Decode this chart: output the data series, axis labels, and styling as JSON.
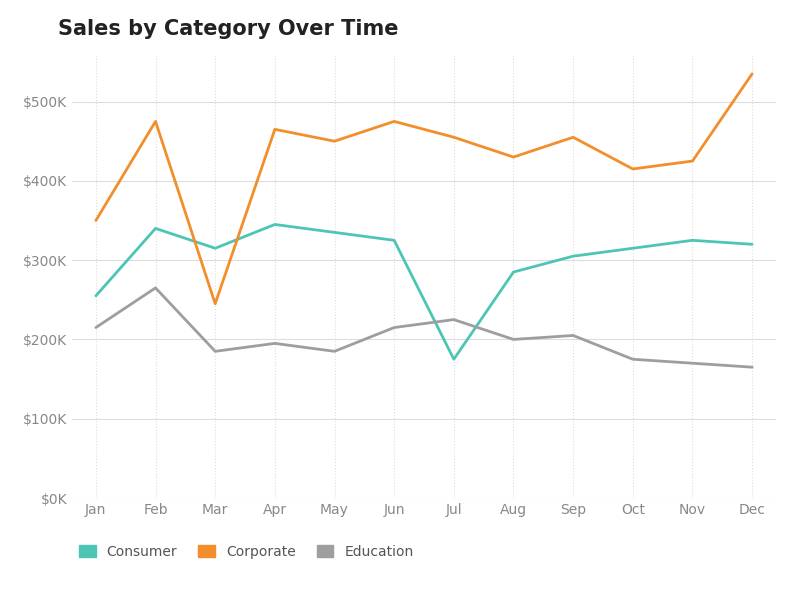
{
  "title": "Sales by Category Over Time",
  "months": [
    "Jan",
    "Feb",
    "Mar",
    "Apr",
    "May",
    "Jun",
    "Jul",
    "Aug",
    "Sep",
    "Oct",
    "Nov",
    "Dec"
  ],
  "series": {
    "Consumer": {
      "color": "#4dc5b5",
      "values": [
        255000,
        340000,
        315000,
        345000,
        335000,
        325000,
        175000,
        285000,
        305000,
        315000,
        325000,
        320000
      ]
    },
    "Corporate": {
      "color": "#f28e2b",
      "values": [
        350000,
        475000,
        245000,
        465000,
        450000,
        475000,
        455000,
        430000,
        455000,
        415000,
        425000,
        535000
      ]
    },
    "Education": {
      "color": "#9e9e9e",
      "values": [
        215000,
        265000,
        185000,
        195000,
        185000,
        215000,
        225000,
        200000,
        205000,
        175000,
        170000,
        165000
      ]
    }
  },
  "ylim": [
    0,
    560000
  ],
  "yticks": [
    0,
    100000,
    200000,
    300000,
    400000,
    500000
  ],
  "background_color": "#ffffff",
  "grid_color": "#dddddd",
  "title_fontsize": 15,
  "tick_color": "#aaaaaa",
  "label_color": "#888888",
  "legend_order": [
    "Consumer",
    "Corporate",
    "Education"
  ]
}
